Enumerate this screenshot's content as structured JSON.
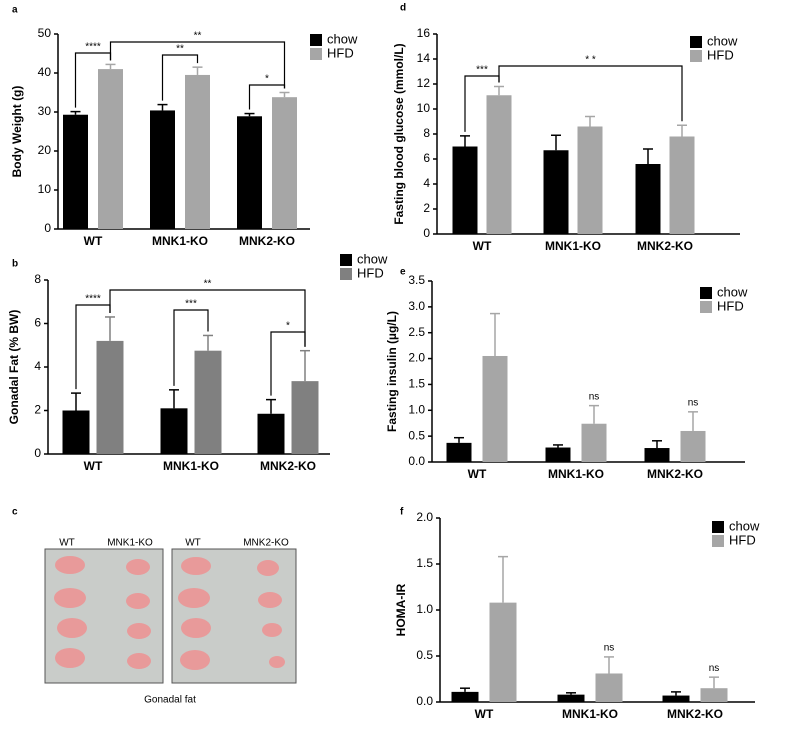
{
  "chart_data": [
    {
      "type": "bar",
      "panel": "a",
      "ylabel": "Body Weight (g)",
      "categories": [
        "WT",
        "MNK1-KO",
        "MNK2-KO"
      ],
      "series": [
        {
          "name": "chow",
          "color": "#000000",
          "values": [
            29.3,
            30.4,
            28.9
          ],
          "errors": [
            0.8,
            1.5,
            0.7
          ]
        },
        {
          "name": "HFD",
          "color": "#a6a6a6",
          "values": [
            41,
            39.5,
            33.8
          ],
          "errors": [
            1.2,
            2,
            1.2
          ]
        }
      ],
      "ylim": [
        0,
        50
      ],
      "yticks": [
        0,
        10,
        20,
        30,
        40,
        50
      ],
      "annotations": [
        "****",
        "**",
        "*",
        "**"
      ]
    },
    {
      "type": "bar",
      "panel": "b",
      "ylabel": "Gonadal Fat (% BW)",
      "categories": [
        "WT",
        "MNK1-KO",
        "MNK2-KO"
      ],
      "series": [
        {
          "name": "chow",
          "color": "#000000",
          "values": [
            2.0,
            2.1,
            1.85
          ],
          "errors": [
            0.8,
            0.85,
            0.65
          ]
        },
        {
          "name": "HFD",
          "color": "#808080",
          "values": [
            5.2,
            4.75,
            3.35
          ],
          "errors": [
            1.1,
            0.7,
            1.4
          ]
        }
      ],
      "ylim": [
        0,
        8
      ],
      "yticks": [
        0,
        2,
        4,
        6,
        8
      ],
      "annotations": [
        "****",
        "***",
        "*",
        "**"
      ]
    },
    {
      "type": "bar",
      "panel": "d",
      "ylabel": "Fasting blood glucose (mmol/L)",
      "categories": [
        "WT",
        "MNK1-KO",
        "MNK2-KO"
      ],
      "series": [
        {
          "name": "chow",
          "color": "#000000",
          "values": [
            7.0,
            6.7,
            5.6
          ],
          "errors": [
            0.85,
            1.2,
            1.2
          ]
        },
        {
          "name": "HFD",
          "color": "#a6a6a6",
          "values": [
            11.1,
            8.6,
            7.8
          ],
          "errors": [
            0.7,
            0.8,
            0.9
          ]
        }
      ],
      "ylim": [
        0,
        16
      ],
      "yticks": [
        0,
        2,
        4,
        6,
        8,
        10,
        12,
        14,
        16
      ],
      "annotations": [
        "***",
        "* *"
      ]
    },
    {
      "type": "bar",
      "panel": "e",
      "ylabel": "Fasting insulin (µg/L)",
      "categories": [
        "WT",
        "MNK1-KO",
        "MNK2-KO"
      ],
      "series": [
        {
          "name": "chow",
          "color": "#000000",
          "values": [
            0.37,
            0.28,
            0.27
          ],
          "errors": [
            0.1,
            0.05,
            0.14
          ]
        },
        {
          "name": "HFD",
          "color": "#a6a6a6",
          "values": [
            2.05,
            0.74,
            0.6
          ],
          "errors": [
            0.82,
            0.35,
            0.37
          ]
        }
      ],
      "ylim": [
        0,
        3.5
      ],
      "yticks": [
        {
          "value": 0,
          "label": "0.0"
        },
        0.5,
        {
          "value": 1,
          "label": "1.0"
        },
        1.5,
        {
          "value": 2,
          "label": "2.0"
        },
        2.5,
        {
          "value": 3,
          "label": "3.0"
        },
        3.5
      ],
      "annotations": [
        "ns",
        "ns"
      ]
    },
    {
      "type": "bar",
      "panel": "f",
      "ylabel": "HOMA-IR",
      "categories": [
        "WT",
        "MNK1-KO",
        "MNK2-KO"
      ],
      "series": [
        {
          "name": "chow",
          "color": "#000000",
          "values": [
            0.11,
            0.08,
            0.07
          ],
          "errors": [
            0.04,
            0.02,
            0.04
          ]
        },
        {
          "name": "HFD",
          "color": "#a6a6a6",
          "values": [
            1.08,
            0.31,
            0.15
          ],
          "errors": [
            0.5,
            0.18,
            0.12
          ]
        }
      ],
      "ylim": [
        0,
        2
      ],
      "yticks": [
        {
          "value": 0,
          "label": "0.0"
        },
        0.5,
        {
          "value": 1,
          "label": "1.0"
        },
        1.5,
        {
          "value": 2,
          "label": "2.0"
        }
      ],
      "annotations": [
        "ns",
        "ns"
      ]
    }
  ],
  "photo": {
    "panel": "c",
    "left_labels": [
      "WT",
      "MNK1-KO"
    ],
    "right_labels": [
      "WT",
      "MNK2-KO"
    ],
    "caption": "Gonadal fat"
  }
}
